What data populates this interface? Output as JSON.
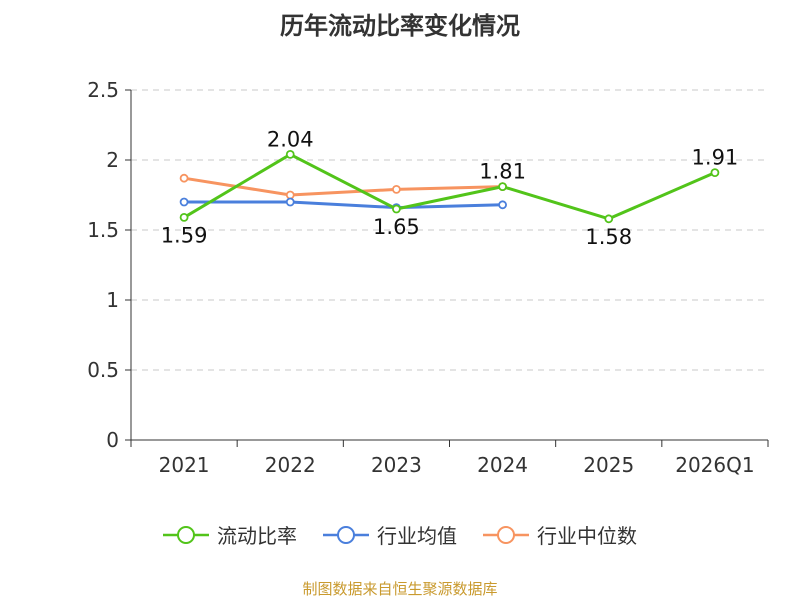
{
  "chart_data": {
    "type": "line",
    "title": "历年流动比率变化情况",
    "categories": [
      "2021",
      "2022",
      "2023",
      "2024",
      "2025",
      "2026Q1"
    ],
    "ylim": [
      0,
      2.5
    ],
    "yticks": [
      "0",
      "0.5",
      "1",
      "1.5",
      "2",
      "2.5"
    ],
    "grid": true,
    "legend_position": "bottom",
    "series": [
      {
        "name": "流动比率",
        "color": "#52c41a",
        "values": [
          1.59,
          2.04,
          1.65,
          1.81,
          1.58,
          1.91
        ],
        "labels": true
      },
      {
        "name": "行业均值",
        "color": "#4a7fdc",
        "values": [
          1.7,
          1.7,
          1.66,
          1.68,
          null,
          null
        ],
        "labels": false
      },
      {
        "name": "行业中位数",
        "color": "#f79460",
        "values": [
          1.87,
          1.75,
          1.79,
          1.81,
          null,
          null
        ],
        "labels": false
      }
    ]
  },
  "source": "制图数据来自恒生聚源数据库"
}
